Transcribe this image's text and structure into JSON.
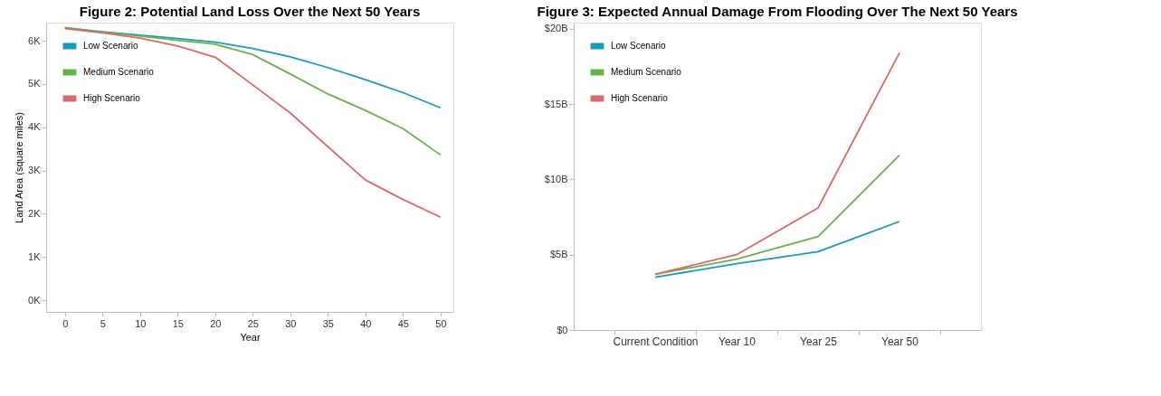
{
  "chart_data": [
    {
      "type": "line",
      "title": "Figure 2: Potential Land Loss Over the Next 50 Years",
      "xlabel": "Year",
      "ylabel": "Land Area (square miles)",
      "x": [
        0,
        5,
        10,
        15,
        20,
        25,
        30,
        35,
        40,
        45,
        50
      ],
      "series": [
        {
          "name": "Low Scenario",
          "color": "#1a9bb5",
          "values": [
            6300,
            6210,
            6130,
            6050,
            5970,
            5820,
            5630,
            5380,
            5100,
            4800,
            4450
          ]
        },
        {
          "name": "Medium Scenario",
          "color": "#6ab04c",
          "values": [
            6300,
            6200,
            6110,
            6010,
            5920,
            5680,
            5230,
            4770,
            4390,
            3970,
            3360
          ]
        },
        {
          "name": "High Scenario",
          "color": "#d9696b",
          "values": [
            6280,
            6180,
            6060,
            5880,
            5620,
            4980,
            4330,
            3550,
            2780,
            2330,
            1920
          ]
        }
      ],
      "xlim": [
        -2.5,
        51.7
      ],
      "xticks": [
        0,
        5,
        10,
        15,
        20,
        25,
        30,
        35,
        40,
        45,
        50
      ],
      "ylim": [
        -270,
        6420
      ],
      "yticks": [
        {
          "value": 0,
          "label": "0K"
        },
        {
          "value": 1000,
          "label": "1K"
        },
        {
          "value": 2000,
          "label": "2K"
        },
        {
          "value": 3000,
          "label": "3K"
        },
        {
          "value": 4000,
          "label": "4K"
        },
        {
          "value": 5000,
          "label": "5K"
        },
        {
          "value": 6000,
          "label": "6K"
        }
      ],
      "grid": false,
      "legend": "top left",
      "marker": "none",
      "line_style": "solid"
    },
    {
      "type": "line",
      "title": "Figure 3: Expected Annual Damage From Flooding Over The Next 50 Years",
      "categories": [
        "Current Condition",
        "Year 10",
        "Year 25",
        "Year 50"
      ],
      "series": [
        {
          "name": "Low Scenario",
          "color": "#1a9bb5",
          "values": [
            3.5,
            4.4,
            5.2,
            7.2
          ]
        },
        {
          "name": "Medium Scenario",
          "color": "#6ab04c",
          "values": [
            3.7,
            4.7,
            6.2,
            11.6
          ]
        },
        {
          "name": "High Scenario",
          "color": "#d9696b",
          "values": [
            3.7,
            5.0,
            8.1,
            18.4
          ]
        }
      ],
      "ylim": [
        0,
        20.4
      ],
      "yticks": [
        {
          "value": 0,
          "label": "$0"
        },
        {
          "value": 5,
          "label": "$5B"
        },
        {
          "value": 10,
          "label": "$10B"
        },
        {
          "value": 15,
          "label": "$15B"
        },
        {
          "value": 20,
          "label": "$20B"
        }
      ],
      "grid": false,
      "legend": "top left",
      "marker": "none",
      "line_style": "solid"
    }
  ]
}
